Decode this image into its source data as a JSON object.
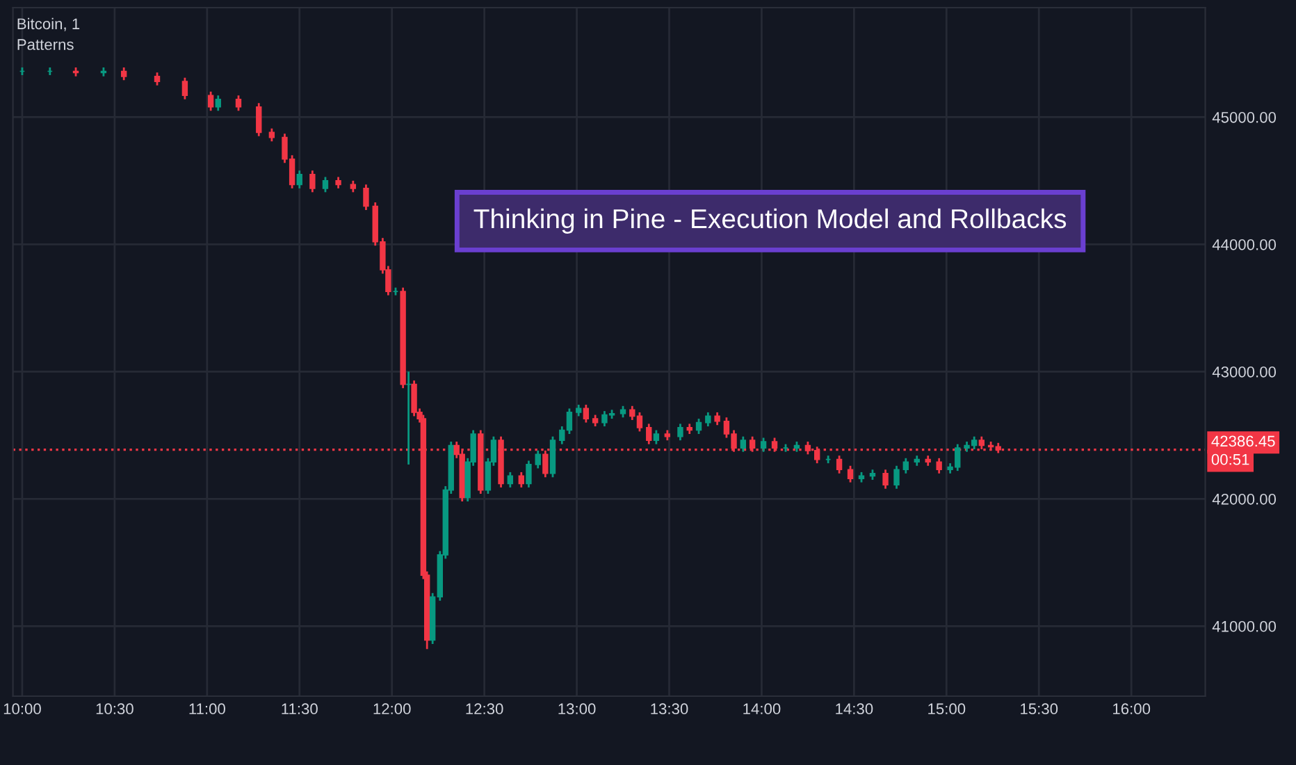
{
  "chart_data": {
    "type": "candlestick",
    "title": "Thinking in Pine - Execution Model and Rollbacks",
    "annotations": [
      "Bitcoin, 1",
      "Patterns",
      "00:51"
    ],
    "x": [
      10.0,
      10.15,
      10.29,
      10.44,
      10.55,
      10.73,
      10.88,
      11.02,
      11.06,
      11.17,
      11.28,
      11.35,
      11.42,
      11.46,
      11.5,
      11.57,
      11.64,
      11.71,
      11.79,
      11.86,
      11.91,
      11.95,
      11.98,
      12.02,
      12.06,
      12.09,
      12.12,
      12.15,
      12.17,
      12.19,
      12.22,
      12.26,
      12.29,
      12.32,
      12.35,
      12.38,
      12.41,
      12.44,
      12.48,
      12.52,
      12.55,
      12.59,
      12.64,
      12.7,
      12.74,
      12.79,
      12.83,
      12.87,
      12.92,
      12.96,
      13.01,
      13.05,
      13.1,
      13.15,
      13.19,
      13.25,
      13.3,
      13.34,
      13.39,
      13.43,
      13.49,
      13.56,
      13.61,
      13.66,
      13.71,
      13.76,
      13.81,
      13.85,
      13.9,
      13.95,
      14.01,
      14.07,
      14.13,
      14.19,
      14.25,
      14.3,
      14.36,
      14.42,
      14.48,
      14.54,
      14.6,
      14.67,
      14.73,
      14.78,
      14.84,
      14.9,
      14.96,
      15.02,
      15.06,
      15.11,
      15.15,
      15.19,
      15.24,
      15.28
    ],
    "ohlc": [
      [
        45360,
        45390,
        45330,
        45360
      ],
      [
        45360,
        45390,
        45330,
        45360
      ],
      [
        45360,
        45390,
        45320,
        45350
      ],
      [
        45350,
        45390,
        45320,
        45360
      ],
      [
        45360,
        45390,
        45290,
        45320
      ],
      [
        45320,
        45350,
        45250,
        45280
      ],
      [
        45280,
        45310,
        45140,
        45170
      ],
      [
        45170,
        45200,
        45050,
        45080
      ],
      [
        45080,
        45170,
        45050,
        45140
      ],
      [
        45140,
        45170,
        45050,
        45080
      ],
      [
        45080,
        45110,
        44850,
        44880
      ],
      [
        44880,
        44910,
        44810,
        44840
      ],
      [
        44840,
        44870,
        44640,
        44670
      ],
      [
        44670,
        44700,
        44440,
        44470
      ],
      [
        44470,
        44580,
        44440,
        44550
      ],
      [
        44550,
        44580,
        44410,
        44440
      ],
      [
        44440,
        44530,
        44410,
        44500
      ],
      [
        44500,
        44530,
        44440,
        44470
      ],
      [
        44470,
        44500,
        44410,
        44440
      ],
      [
        44440,
        44470,
        44270,
        44300
      ],
      [
        44300,
        44330,
        43990,
        44020
      ],
      [
        44020,
        44050,
        43770,
        43800
      ],
      [
        43800,
        43830,
        43600,
        43630
      ],
      [
        43630,
        43660,
        43600,
        43630
      ],
      [
        43630,
        43660,
        42870,
        42900
      ],
      [
        42900,
        43000,
        42270,
        42900
      ],
      [
        42900,
        42930,
        42650,
        42680
      ],
      [
        42680,
        42710,
        42600,
        42630
      ],
      [
        42630,
        42660,
        41370,
        41400
      ],
      [
        41400,
        41430,
        40820,
        40890
      ],
      [
        40890,
        41260,
        40860,
        41230
      ],
      [
        41230,
        41590,
        41200,
        41560
      ],
      [
        41560,
        42100,
        41530,
        42070
      ],
      [
        42070,
        42450,
        42040,
        42420
      ],
      [
        42420,
        42450,
        42320,
        42350
      ],
      [
        42350,
        42380,
        41980,
        42010
      ],
      [
        42010,
        42320,
        41980,
        42290
      ],
      [
        42290,
        42540,
        42260,
        42510
      ],
      [
        42510,
        42540,
        42040,
        42070
      ],
      [
        42070,
        42320,
        42040,
        42290
      ],
      [
        42290,
        42490,
        42260,
        42460
      ],
      [
        42460,
        42490,
        42090,
        42120
      ],
      [
        42120,
        42210,
        42090,
        42180
      ],
      [
        42180,
        42210,
        42090,
        42120
      ],
      [
        42120,
        42300,
        42090,
        42270
      ],
      [
        42270,
        42380,
        42240,
        42350
      ],
      [
        42350,
        42380,
        42170,
        42200
      ],
      [
        42200,
        42490,
        42170,
        42460
      ],
      [
        42460,
        42570,
        42430,
        42540
      ],
      [
        42540,
        42710,
        42510,
        42680
      ],
      [
        42680,
        42740,
        42650,
        42710
      ],
      [
        42710,
        42740,
        42600,
        42630
      ],
      [
        42630,
        42660,
        42570,
        42600
      ],
      [
        42600,
        42690,
        42570,
        42660
      ],
      [
        42660,
        42700,
        42630,
        42670
      ],
      [
        42670,
        42730,
        42640,
        42700
      ],
      [
        42700,
        42730,
        42620,
        42650
      ],
      [
        42650,
        42680,
        42530,
        42560
      ],
      [
        42560,
        42590,
        42430,
        42460
      ],
      [
        42460,
        42540,
        42430,
        42510
      ],
      [
        42510,
        42540,
        42460,
        42490
      ],
      [
        42490,
        42590,
        42460,
        42560
      ],
      [
        42560,
        42590,
        42510,
        42540
      ],
      [
        42540,
        42630,
        42510,
        42600
      ],
      [
        42600,
        42680,
        42570,
        42650
      ],
      [
        42650,
        42680,
        42580,
        42610
      ],
      [
        42610,
        42640,
        42480,
        42510
      ],
      [
        42510,
        42540,
        42370,
        42400
      ],
      [
        42400,
        42490,
        42370,
        42460
      ],
      [
        42460,
        42490,
        42370,
        42400
      ],
      [
        42400,
        42480,
        42370,
        42450
      ],
      [
        42450,
        42480,
        42370,
        42400
      ],
      [
        42400,
        42430,
        42370,
        42400
      ],
      [
        42400,
        42450,
        42370,
        42420
      ],
      [
        42420,
        42450,
        42350,
        42380
      ],
      [
        42380,
        42410,
        42280,
        42310
      ],
      [
        42310,
        42340,
        42280,
        42310
      ],
      [
        42310,
        42340,
        42200,
        42230
      ],
      [
        42230,
        42260,
        42130,
        42160
      ],
      [
        42160,
        42210,
        42130,
        42180
      ],
      [
        42180,
        42230,
        42150,
        42200
      ],
      [
        42200,
        42230,
        42080,
        42110
      ],
      [
        42110,
        42260,
        42080,
        42230
      ],
      [
        42230,
        42320,
        42200,
        42290
      ],
      [
        42290,
        42340,
        42260,
        42310
      ],
      [
        42310,
        42340,
        42260,
        42290
      ],
      [
        42290,
        42320,
        42200,
        42230
      ],
      [
        42230,
        42280,
        42200,
        42250
      ],
      [
        42250,
        42430,
        42220,
        42400
      ],
      [
        42400,
        42450,
        42370,
        42420
      ],
      [
        42420,
        42490,
        42390,
        42460
      ],
      [
        42460,
        42490,
        42390,
        42420
      ],
      [
        42420,
        42450,
        42380,
        42410
      ],
      [
        42410,
        42440,
        42360,
        42386.45
      ]
    ],
    "colors": [
      "#089981",
      "#089981",
      "#f23645",
      "#089981",
      "#f23645",
      "#f23645",
      "#f23645",
      "#f23645",
      "#089981",
      "#f23645",
      "#f23645",
      "#f23645",
      "#f23645",
      "#f23645",
      "#089981",
      "#f23645",
      "#089981",
      "#f23645",
      "#f23645",
      "#f23645",
      "#f23645",
      "#f23645",
      "#f23645",
      "#089981",
      "#f23645",
      "#089981",
      "#f23645",
      "#f23645",
      "#f23645",
      "#f23645",
      "#089981",
      "#089981",
      "#089981",
      "#089981",
      "#f23645",
      "#f23645",
      "#089981",
      "#089981",
      "#f23645",
      "#089981",
      "#089981",
      "#f23645",
      "#089981",
      "#f23645",
      "#089981",
      "#089981",
      "#f23645",
      "#089981",
      "#089981",
      "#089981",
      "#089981",
      "#f23645",
      "#f23645",
      "#089981",
      "#089981",
      "#089981",
      "#f23645",
      "#f23645",
      "#f23645",
      "#089981",
      "#f23645",
      "#089981",
      "#f23645",
      "#089981",
      "#089981",
      "#f23645",
      "#f23645",
      "#f23645",
      "#089981",
      "#f23645",
      "#089981",
      "#f23645",
      "#089981",
      "#089981",
      "#f23645",
      "#f23645",
      "#089981",
      "#f23645",
      "#f23645",
      "#089981",
      "#089981",
      "#f23645",
      "#089981",
      "#089981",
      "#089981",
      "#f23645",
      "#f23645",
      "#089981",
      "#089981",
      "#089981",
      "#089981",
      "#f23645",
      "#f23645",
      "#f23645"
    ],
    "xlim": [
      9.95,
      16.4
    ],
    "ylim": [
      40450,
      45860
    ],
    "xticks": [
      {
        "value": 10,
        "label": "10:00"
      },
      {
        "value": 10.5,
        "label": "10:30"
      },
      {
        "value": 11,
        "label": "11:00"
      },
      {
        "value": 11.5,
        "label": "11:30"
      },
      {
        "value": 12,
        "label": "12:00"
      },
      {
        "value": 12.5,
        "label": "12:30"
      },
      {
        "value": 13,
        "label": "13:00"
      },
      {
        "value": 13.5,
        "label": "13:30"
      },
      {
        "value": 14,
        "label": "14:00"
      },
      {
        "value": 14.5,
        "label": "14:30"
      },
      {
        "value": 15,
        "label": "15:00"
      },
      {
        "value": 15.5,
        "label": "15:30"
      },
      {
        "value": 16,
        "label": "16:00"
      }
    ],
    "yticks": [
      {
        "value": 41000,
        "label": "41000.00"
      },
      {
        "value": 42000,
        "label": "42000.00"
      },
      {
        "value": 43000,
        "label": "43000.00"
      },
      {
        "value": 44000,
        "label": "44000.00"
      },
      {
        "value": 45000,
        "label": "45000.00"
      }
    ],
    "ref_lines": [
      {
        "axis": "y",
        "value": 42386.45,
        "label": "42386.45",
        "color": "#f23645",
        "line_style": "dotted"
      }
    ],
    "grid": true
  }
}
